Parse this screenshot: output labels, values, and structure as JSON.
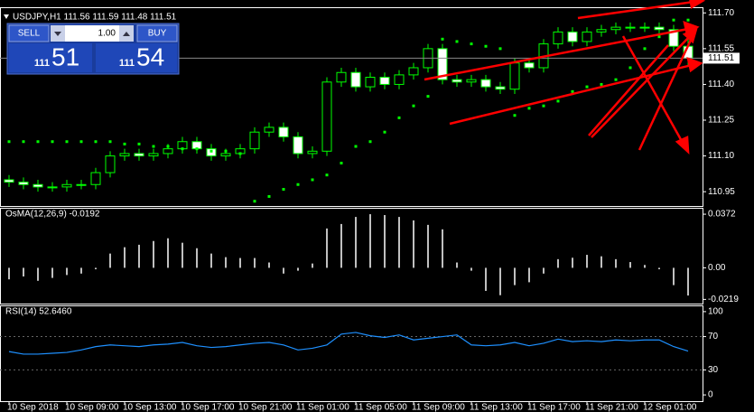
{
  "chart_data": [
    {
      "type": "candlestick",
      "title": "USDJPY,H1  111.56 111.59 111.48 111.51",
      "categories": [
        "10 Sep 2018",
        null,
        null,
        null,
        "10 Sep 09:00",
        null,
        null,
        null,
        "10 Sep 13:00",
        null,
        null,
        null,
        "10 Sep 17:00",
        null,
        null,
        null,
        "10 Sep 21:00",
        null,
        null,
        null,
        "11 Sep 01:00",
        null,
        null,
        null,
        "11 Sep 05:00",
        null,
        null,
        null,
        "11 Sep 09:00",
        null,
        null,
        null,
        "11 Sep 13:00",
        null,
        null,
        null,
        "11 Sep 17:00",
        null,
        null,
        null,
        "11 Sep 21:00",
        null,
        null,
        null,
        "12 Sep 01:00",
        null,
        null,
        null
      ],
      "open": [
        111.0,
        110.99,
        110.98,
        110.97,
        110.97,
        110.98,
        110.98,
        111.03,
        111.1,
        111.11,
        111.1,
        111.11,
        111.13,
        111.16,
        111.13,
        111.1,
        111.11,
        111.13,
        111.2,
        111.22,
        111.18,
        111.11,
        111.12,
        111.41,
        111.45,
        111.39,
        111.43,
        111.4,
        111.44,
        111.47,
        111.55,
        111.42,
        111.41,
        111.42,
        111.39,
        111.38,
        111.49,
        111.47,
        111.57,
        111.62,
        111.58,
        111.62,
        111.63,
        111.64,
        111.64,
        111.64,
        111.63,
        111.56
      ],
      "high": [
        111.02,
        111.01,
        111.0,
        110.99,
        111.0,
        111.0,
        111.05,
        111.12,
        111.13,
        111.13,
        111.13,
        111.15,
        111.18,
        111.18,
        111.15,
        111.13,
        111.15,
        111.22,
        111.24,
        111.24,
        111.2,
        111.14,
        111.43,
        111.47,
        111.47,
        111.45,
        111.45,
        111.46,
        111.49,
        111.57,
        111.57,
        111.44,
        111.44,
        111.44,
        111.41,
        111.51,
        111.51,
        111.59,
        111.64,
        111.64,
        111.64,
        111.65,
        111.66,
        111.66,
        111.66,
        111.66,
        111.65,
        111.59
      ],
      "low": [
        110.97,
        110.96,
        110.95,
        110.95,
        110.95,
        110.96,
        110.96,
        111.01,
        111.08,
        111.08,
        111.08,
        111.09,
        111.11,
        111.11,
        111.08,
        111.08,
        111.09,
        111.11,
        111.18,
        111.16,
        111.09,
        111.09,
        111.1,
        111.39,
        111.37,
        111.37,
        111.38,
        111.38,
        111.42,
        111.45,
        111.4,
        111.39,
        111.39,
        111.37,
        111.36,
        111.36,
        111.45,
        111.45,
        111.55,
        111.56,
        111.56,
        111.6,
        111.61,
        111.62,
        111.62,
        111.61,
        111.54,
        111.48
      ],
      "close": [
        110.99,
        110.98,
        110.97,
        110.97,
        110.98,
        110.98,
        111.03,
        111.1,
        111.11,
        111.1,
        111.11,
        111.13,
        111.16,
        111.13,
        111.1,
        111.11,
        111.13,
        111.2,
        111.22,
        111.18,
        111.11,
        111.12,
        111.41,
        111.45,
        111.39,
        111.43,
        111.4,
        111.44,
        111.47,
        111.55,
        111.42,
        111.41,
        111.42,
        111.39,
        111.38,
        111.49,
        111.47,
        111.57,
        111.62,
        111.58,
        111.62,
        111.63,
        111.64,
        111.64,
        111.64,
        111.63,
        111.56,
        111.51
      ],
      "sar": [
        111.16,
        111.16,
        111.16,
        111.16,
        111.16,
        111.16,
        111.16,
        111.16,
        111.15,
        111.15,
        111.14,
        111.14,
        111.13,
        111.13,
        111.12,
        111.12,
        111.11,
        110.91,
        110.93,
        110.96,
        110.98,
        111.0,
        111.02,
        111.07,
        111.14,
        111.16,
        111.2,
        111.26,
        111.31,
        111.35,
        111.59,
        111.58,
        111.57,
        111.56,
        111.55,
        111.27,
        111.3,
        111.31,
        111.33,
        111.37,
        111.39,
        111.4,
        111.42,
        111.47,
        111.55,
        111.6,
        111.67,
        111.67
      ],
      "up_color": "#000000",
      "down_color": "#ffffff",
      "wick_color": "#00ff00",
      "sar_color": "#00ff00",
      "current_price": 111.51,
      "ylim": [
        110.89,
        111.72
      ],
      "yticks": [
        {
          "value": 111.7,
          "label": "111.70"
        },
        111.55,
        {
          "value": 111.4,
          "label": "111.40"
        },
        111.25,
        {
          "value": 111.1,
          "label": "111.10"
        },
        110.95
      ]
    },
    {
      "type": "histogram",
      "title": "OsMA(12,26,9) -0.0192",
      "color": "#c0c0c0",
      "values": [
        -0.008,
        -0.006,
        -0.009,
        -0.007,
        -0.005,
        -0.004,
        -0.001,
        0.0099,
        0.0143,
        0.016,
        0.0186,
        0.0205,
        0.0174,
        0.0136,
        0.0099,
        0.0074,
        0.0068,
        0.0068,
        0.0037,
        -0.004,
        -0.002,
        0.003,
        0.0273,
        0.0304,
        0.0353,
        0.0372,
        0.0366,
        0.0353,
        0.0329,
        0.0298,
        0.0267,
        0.0037,
        -0.002,
        -0.016,
        -0.019,
        -0.012,
        -0.01,
        -0.004,
        0.006,
        0.007,
        0.009,
        0.008,
        0.006,
        0.004,
        0.002,
        -0.001,
        -0.012,
        -0.0192
      ],
      "ylim": [
        -0.0248,
        0.041
      ],
      "yticks": [
        0.0372,
        {
          "value": 0,
          "label": "0.00"
        },
        -0.0219
      ]
    },
    {
      "type": "line",
      "title": "RSI(14) 52.6460",
      "color": "#1e90ff",
      "values": [
        52,
        49,
        49,
        50,
        51,
        54,
        58,
        60,
        59,
        58,
        60,
        61,
        63,
        59,
        57,
        58,
        60,
        62,
        63,
        60,
        54,
        56,
        60,
        73,
        75,
        71,
        69,
        72,
        66,
        68,
        70,
        72,
        60,
        59,
        60,
        63,
        59,
        62,
        67,
        64,
        65,
        64,
        66,
        65,
        66,
        66,
        58,
        52.646
      ],
      "levels": [
        70,
        30
      ],
      "ylim": [
        -7.5,
        106.4
      ],
      "yticks": [
        100,
        70,
        30,
        0
      ]
    }
  ],
  "trade_panel": {
    "sell": "SELL",
    "buy": "BUY",
    "lots": "1.00",
    "sell_big": "111",
    "sell_small": "51",
    "buy_big": "111",
    "buy_small": "54"
  }
}
